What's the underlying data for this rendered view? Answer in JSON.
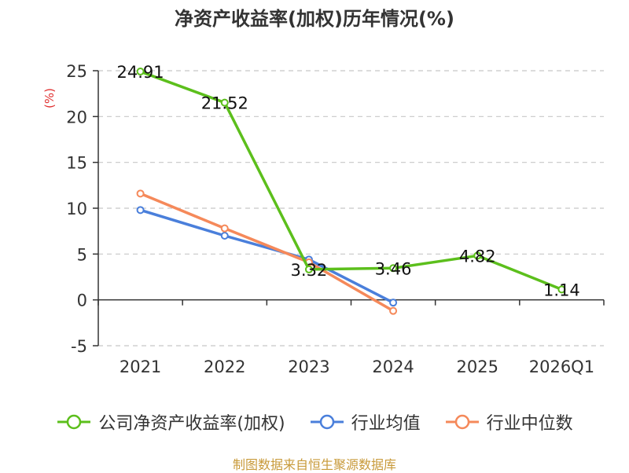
{
  "title": "净资产收益率(加权)历年情况(%)",
  "source": "制图数据来自恒生聚源数据库",
  "colors": {
    "company": "#5cbf1c",
    "industry_avg": "#4a7fdb",
    "industry_median": "#f5895a"
  },
  "chart_data": {
    "type": "line",
    "title": "净资产收益率(加权)历年情况(%)",
    "ylabel": "(%)",
    "xlabel": "",
    "categories": [
      "2021",
      "2022",
      "2023",
      "2024",
      "2025",
      "2026Q1"
    ],
    "ylim": [
      -5,
      25
    ],
    "yticks": [
      25,
      20,
      15,
      10,
      5,
      0,
      -5
    ],
    "grid": true,
    "legend_position": "bottom",
    "series": [
      {
        "key": "company",
        "name": "公司净资产收益率(加权)",
        "color": "#5cbf1c",
        "values": [
          24.91,
          21.52,
          3.32,
          3.46,
          4.82,
          1.14
        ],
        "labels": [
          "24.91",
          "21.52",
          "3.32",
          "3.46",
          "4.82",
          "1.14"
        ]
      },
      {
        "key": "industry_avg",
        "name": "行业均值",
        "color": "#4a7fdb",
        "values": [
          9.8,
          7.0,
          4.4,
          -0.3,
          null,
          null
        ]
      },
      {
        "key": "industry_median",
        "name": "行业中位数",
        "color": "#f5895a",
        "values": [
          11.6,
          7.8,
          4.1,
          -1.2,
          null,
          null
        ]
      }
    ]
  }
}
